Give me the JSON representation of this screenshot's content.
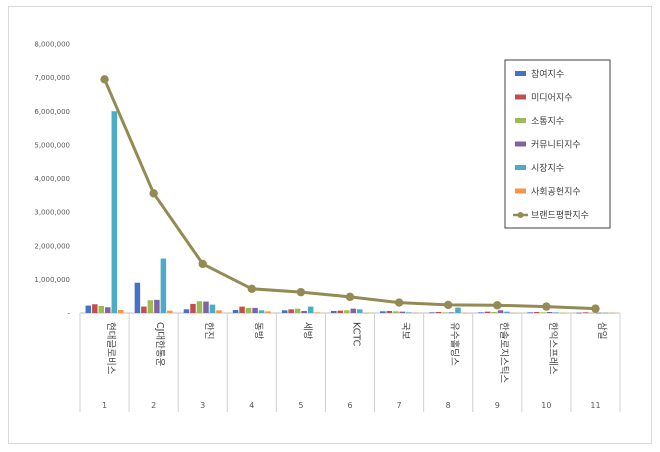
{
  "chart_data": {
    "type": "bar",
    "y_ticks": [
      "-",
      "1,000,000",
      "2,000,000",
      "3,000,000",
      "4,000,000",
      "5,000,000",
      "6,000,000",
      "7,000,000",
      "8,000,000"
    ],
    "ylim": [
      0,
      8000000
    ],
    "grid": false,
    "legend_position": "right",
    "categories": [
      {
        "name": "현대글로비스",
        "index": "1"
      },
      {
        "name": "CJ대한통운",
        "index": "2"
      },
      {
        "name": "한진",
        "index": "3"
      },
      {
        "name": "동방",
        "index": "4"
      },
      {
        "name": "세방",
        "index": "5"
      },
      {
        "name": "KCTC",
        "index": "6"
      },
      {
        "name": "국보",
        "index": "7"
      },
      {
        "name": "유수홀딩스",
        "index": "8"
      },
      {
        "name": "한솔로지스틱스",
        "index": "9"
      },
      {
        "name": "한익스프레스",
        "index": "10"
      },
      {
        "name": "삼일",
        "index": "11"
      }
    ],
    "series": [
      {
        "name": "참여지수",
        "color": "#4472c4",
        "values": [
          220000,
          900000,
          110000,
          90000,
          80000,
          60000,
          50000,
          20000,
          20000,
          20000,
          10000
        ]
      },
      {
        "name": "미디어지수",
        "color": "#c0504d",
        "values": [
          260000,
          190000,
          270000,
          190000,
          110000,
          70000,
          60000,
          30000,
          40000,
          30000,
          20000
        ]
      },
      {
        "name": "소통지수",
        "color": "#9bbb59",
        "values": [
          210000,
          380000,
          350000,
          150000,
          130000,
          80000,
          50000,
          20000,
          30000,
          20000,
          10000
        ]
      },
      {
        "name": "커뮤니티지수",
        "color": "#8064a2",
        "values": [
          170000,
          390000,
          340000,
          150000,
          60000,
          130000,
          40000,
          20000,
          80000,
          30000,
          10000
        ]
      },
      {
        "name": "시장지수",
        "color": "#4bacc6",
        "values": [
          6000000,
          1620000,
          250000,
          80000,
          190000,
          110000,
          20000,
          160000,
          40000,
          20000,
          10000
        ]
      },
      {
        "name": "사회공헌지수",
        "color": "#f79646",
        "values": [
          90000,
          70000,
          80000,
          50000,
          20000,
          10000,
          10000,
          10000,
          10000,
          10000,
          10000
        ]
      }
    ],
    "line_series": {
      "name": "브랜드평판지수",
      "color": "#948a54",
      "values": [
        6950000,
        3560000,
        1460000,
        720000,
        620000,
        480000,
        310000,
        240000,
        230000,
        190000,
        130000
      ]
    }
  }
}
